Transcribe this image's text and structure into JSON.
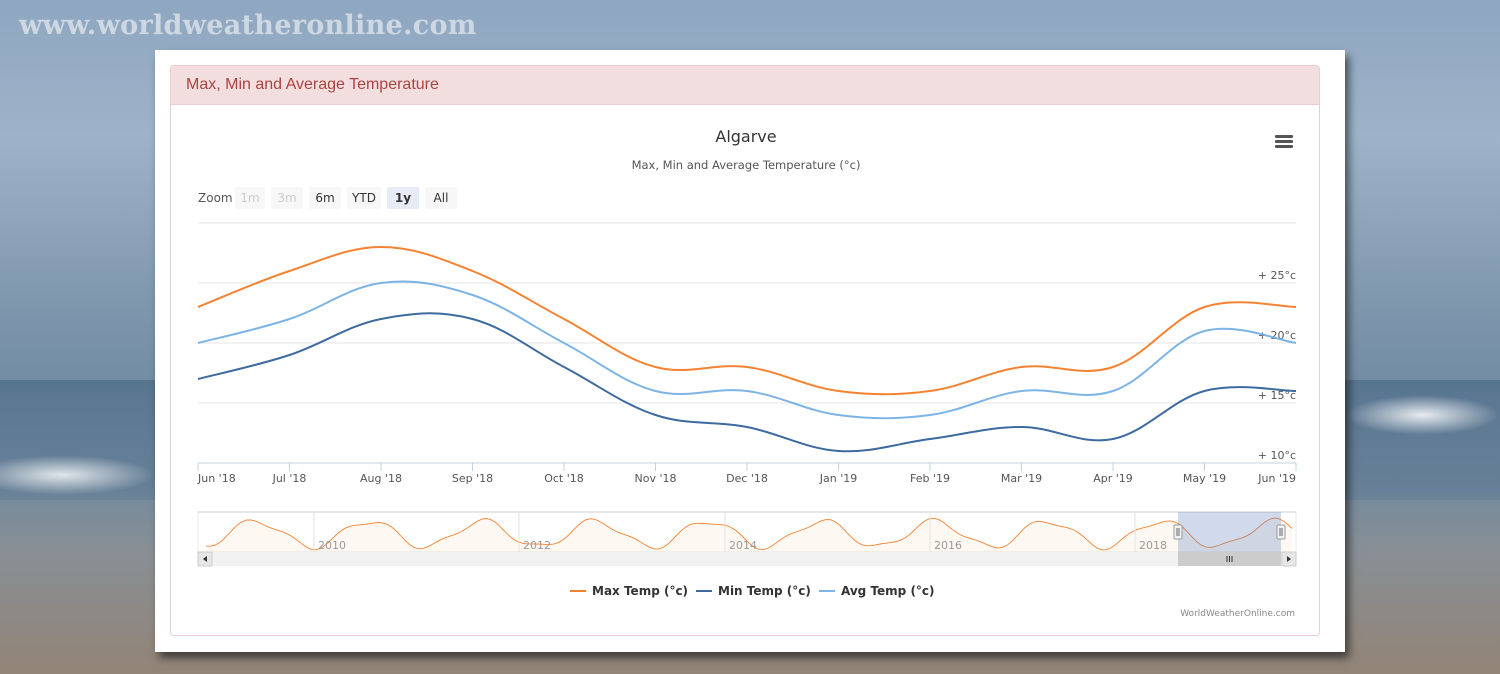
{
  "watermark": "www.worldweatheronline.com",
  "panel": {
    "heading": "Max, Min and Average Temperature"
  },
  "menu_icon": "hamburger-menu-icon",
  "zoom": {
    "label": "Zoom",
    "buttons": [
      {
        "label": "1m",
        "state": "disabled"
      },
      {
        "label": "3m",
        "state": "disabled"
      },
      {
        "label": "6m",
        "state": "normal"
      },
      {
        "label": "YTD",
        "state": "normal"
      },
      {
        "label": "1y",
        "state": "selected"
      },
      {
        "label": "All",
        "state": "normal"
      }
    ]
  },
  "navigator": {
    "year_labels": [
      "2010",
      "2012",
      "2014",
      "2016",
      "2018"
    ],
    "scroll_left_icon": "triangle-left-icon",
    "scroll_right_icon": "triangle-right-icon",
    "thumb_icon": "grip-lines-icon"
  },
  "credit": "WorldWeatherOnline.com",
  "colors": {
    "max": "#f58231",
    "min": "#3d6a9f",
    "avg": "#7db4e6"
  },
  "chart_data": {
    "type": "line",
    "title": "Algarve",
    "subtitle": "Max, Min and Average Temperature (°c)",
    "x": [
      "Jun '18",
      "Jul '18",
      "Aug '18",
      "Sep '18",
      "Oct '18",
      "Nov '18",
      "Dec '18",
      "Jan '19",
      "Feb '19",
      "Mar '19",
      "Apr '19",
      "May '19",
      "Jun '19"
    ],
    "y_ticks": [
      {
        "value": 10,
        "label": "+ 10°c"
      },
      {
        "value": 15,
        "label": "+ 15°c"
      },
      {
        "value": 20,
        "label": "+ 20°c"
      },
      {
        "value": 25,
        "label": "+ 25°c"
      }
    ],
    "ylim": [
      10,
      30
    ],
    "grid": true,
    "legend": "bottom-center",
    "series": [
      {
        "name": "Max Temp (°c)",
        "color": "#f58231",
        "values": [
          23,
          26,
          28,
          26,
          22,
          18,
          18,
          16,
          16,
          18,
          18,
          23,
          23
        ]
      },
      {
        "name": "Min Temp (°c)",
        "color": "#3d6a9f",
        "values": [
          17,
          19,
          22,
          22,
          18,
          14,
          13,
          11,
          12,
          13,
          12,
          16,
          16
        ]
      },
      {
        "name": "Avg Temp (°c)",
        "color": "#7db4e6",
        "values": [
          20,
          22,
          25,
          24,
          20,
          16,
          16,
          14,
          14,
          16,
          16,
          21,
          20
        ]
      }
    ]
  }
}
